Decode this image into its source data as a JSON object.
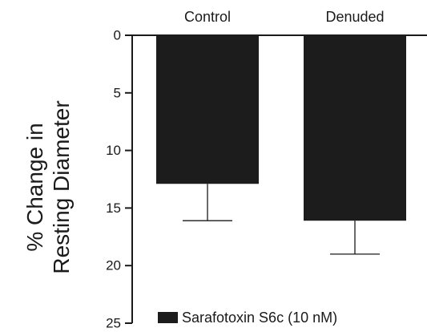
{
  "chart_data": {
    "type": "bar",
    "categories": [
      "Control",
      "Denuded"
    ],
    "series": [
      {
        "name": "Sarafotoxin S6c (10 nM)",
        "values": [
          12.9,
          16.1
        ],
        "errors": [
          3.2,
          2.9
        ]
      }
    ],
    "ylabel_lines": [
      "% Change in",
      "Resting Diameter"
    ],
    "ylim": [
      0,
      25
    ],
    "y_inverted": true,
    "yticks": [
      0,
      5,
      10,
      15,
      20,
      25
    ],
    "ytick_labels": [
      "0",
      "5",
      "10",
      "15",
      "20",
      "25"
    ],
    "category_axis_position": "top",
    "grid": false,
    "legend_position": "bottom-center",
    "bar_color": "#1c1c1c"
  }
}
